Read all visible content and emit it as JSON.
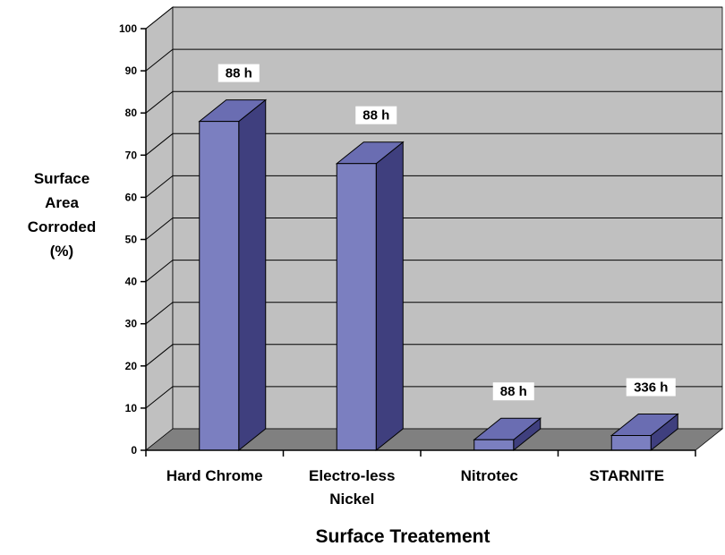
{
  "chart_data": {
    "type": "bar",
    "style": "3d-column",
    "categories": [
      [
        "Hard Chrome"
      ],
      [
        "Electro-less",
        "Nickel"
      ],
      [
        "Nitrotec"
      ],
      [
        "STARNITE"
      ]
    ],
    "values": [
      78,
      68,
      2.5,
      3.5
    ],
    "data_labels": [
      "88 h",
      "88 h",
      "88 h",
      "336 h"
    ],
    "title": "",
    "xlabel": "Surface Treatement",
    "ylabel": [
      "Surface",
      "Area",
      "Corroded",
      "(%)"
    ],
    "ylim": [
      0,
      100
    ],
    "yticks": [
      0,
      10,
      20,
      30,
      40,
      50,
      60,
      70,
      80,
      90,
      100
    ],
    "grid": true,
    "legend": "none",
    "colors": {
      "bar_front": "#7b7fc0",
      "bar_side": "#3f3f7e",
      "bar_top": "#6a6db2",
      "wall": "#c0c0c0",
      "floor": "#808080",
      "grid": "#000000"
    }
  }
}
